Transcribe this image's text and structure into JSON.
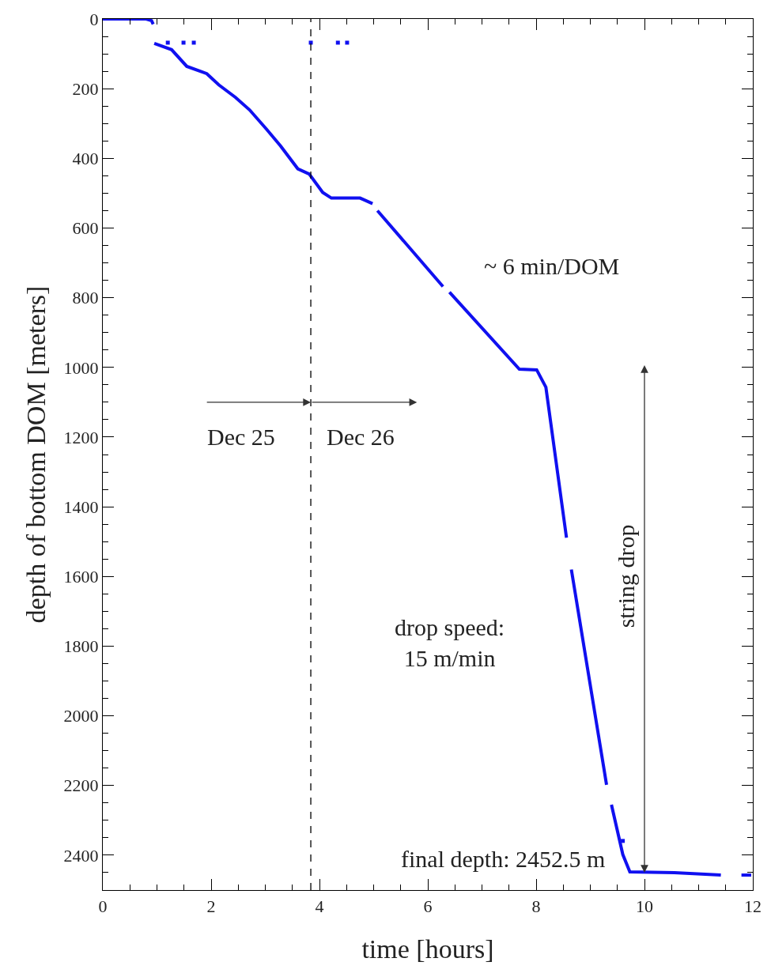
{
  "chart_data": {
    "type": "line",
    "xlabel": "time [hours]",
    "ylabel": "depth of bottom DOM [meters]",
    "series": [
      {
        "color": "#1010f0",
        "x": [
          0,
          0.8,
          0.9,
          0.93,
          null,
          0.95,
          1.27,
          1.55,
          1.92,
          2.14,
          2.45,
          2.71,
          3.02,
          3.28,
          3.6,
          3.81,
          4.06,
          4.22,
          4.75,
          4.98,
          null,
          5.07,
          6.28,
          null,
          6.4,
          7.69,
          8.01,
          8.18,
          8.56,
          null,
          8.65,
          9.3,
          null,
          9.39,
          9.6,
          9.73,
          10.55,
          11.41,
          null,
          11.79,
          11.97
        ],
        "values": [
          0,
          0,
          5,
          15,
          null,
          70,
          88,
          136,
          157,
          189,
          225,
          261,
          316,
          364,
          430,
          445,
          498,
          514,
          514,
          530,
          null,
          550,
          768,
          null,
          784,
          1005,
          1007,
          1057,
          1489,
          null,
          1580,
          2198,
          null,
          2255,
          2398,
          2448,
          2450,
          2457,
          null,
          2457,
          2457
        ]
      },
      {
        "type": "scatter",
        "color": "#1010f0",
        "marker": "square",
        "x": [
          1.2,
          1.49,
          1.68,
          3.84,
          4.34,
          4.51,
          9.6
        ],
        "values": [
          68,
          68,
          68,
          68,
          68,
          68,
          2359
        ]
      }
    ],
    "xlim": [
      0,
      12
    ],
    "xticks": [
      0,
      2,
      4,
      6,
      8,
      10,
      12
    ],
    "ylim": [
      2500,
      0
    ],
    "yticks": [
      0,
      200,
      400,
      600,
      800,
      1000,
      1200,
      1400,
      1600,
      1800,
      2000,
      2200,
      2400
    ],
    "ref_lines": [
      {
        "axis": "x",
        "value": 3.84,
        "color": "#000000",
        "line_style": "dashed"
      }
    ],
    "annotations": [
      "~ 6 min/DOM",
      {
        "text": "Dec 25",
        "x": 3.84,
        "y": 1100
      },
      "Dec 26",
      "drop speed:\n15 m/min",
      "string drop",
      "final depth: 2452.5 m"
    ]
  }
}
